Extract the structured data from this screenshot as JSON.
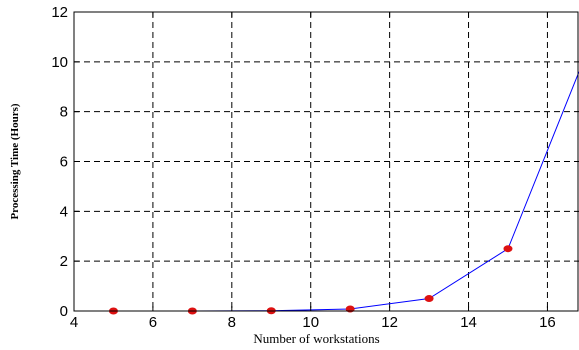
{
  "chart_data": {
    "type": "line",
    "title": "",
    "xlabel": "Number of workstations",
    "ylabel": "Processing Time (Hours)",
    "xlim": [
      4,
      16.8
    ],
    "ylim": [
      0,
      12
    ],
    "xticks": [
      4,
      6,
      8,
      10,
      12,
      14,
      16
    ],
    "yticks": [
      0,
      2,
      4,
      6,
      8,
      10,
      12
    ],
    "grid": true,
    "grid_style": "dashed",
    "series": [
      {
        "line_color": "#0000ff",
        "marker_color": "#dd1111",
        "line_x": [
          5,
          7,
          9,
          11,
          13,
          15,
          16.8
        ],
        "line_y": [
          0.0,
          0.0,
          0.01,
          0.08,
          0.5,
          2.5,
          9.6
        ],
        "marker_x": [
          5,
          7,
          9,
          11,
          13,
          15
        ],
        "marker_y": [
          0.0,
          0.0,
          0.01,
          0.08,
          0.5,
          2.5
        ]
      }
    ]
  }
}
